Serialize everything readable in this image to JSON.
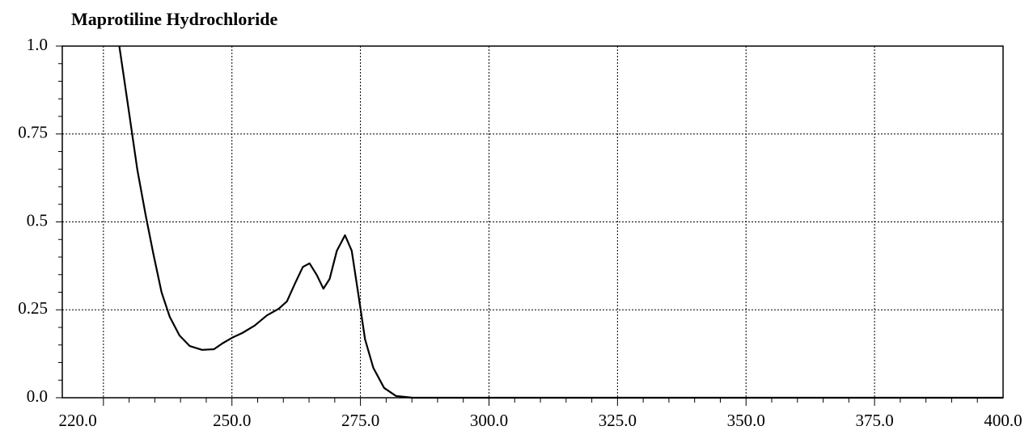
{
  "chart_data": {
    "type": "line",
    "title": "Maprotiline Hydrochloride",
    "x": [
      228.1,
      230.0,
      231.6,
      233.2,
      234.7,
      236.3,
      237.9,
      239.8,
      241.8,
      244.2,
      246.5,
      248.1,
      250.2,
      252.0,
      254.4,
      256.8,
      259.1,
      260.7,
      262.3,
      263.8,
      265.1,
      266.5,
      267.8,
      269.0,
      270.4,
      272.0,
      273.3,
      274.5,
      275.9,
      277.5,
      279.6,
      281.9,
      285.1,
      299.2,
      400.0
    ],
    "series": [
      {
        "name": "Maprotiline Hydrochloride",
        "color": "#000000",
        "values": [
          1.0,
          0.81,
          0.648,
          0.52,
          0.41,
          0.3,
          0.23,
          0.177,
          0.147,
          0.136,
          0.138,
          0.154,
          0.172,
          0.184,
          0.205,
          0.234,
          0.253,
          0.274,
          0.326,
          0.372,
          0.382,
          0.349,
          0.31,
          0.338,
          0.418,
          0.462,
          0.418,
          0.303,
          0.166,
          0.085,
          0.028,
          0.005,
          0.0,
          0.0,
          0.0
        ]
      }
    ],
    "xlim": [
      217,
      400
    ],
    "xticks": [
      {
        "value": 220,
        "label": "220.0"
      },
      {
        "value": 250,
        "label": "250.0"
      },
      {
        "value": 275,
        "label": "275.0"
      },
      {
        "value": 300,
        "label": "300.0"
      },
      {
        "value": 325,
        "label": "325.0"
      },
      {
        "value": 350,
        "label": "350.0"
      },
      {
        "value": 375,
        "label": "375.0"
      },
      {
        "value": 400,
        "label": "400.0"
      }
    ],
    "xgrid": [
      225,
      250,
      275,
      300,
      325,
      350,
      375
    ],
    "ylim": [
      0,
      1.0
    ],
    "yticks": [
      {
        "value": 0,
        "label": "0.0"
      },
      0.25,
      0.5,
      0.75,
      {
        "value": 1.0,
        "label": "1.0"
      }
    ],
    "grid": true
  }
}
